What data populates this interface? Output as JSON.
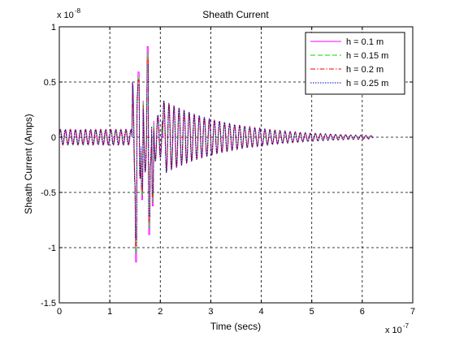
{
  "chart_data": {
    "type": "line",
    "title": "Sheath Current",
    "xlabel": "Time (secs)",
    "ylabel": "Sheath Current (Amps)",
    "x_exponent_label": "x 10",
    "x_exponent": "-7",
    "y_exponent_label": "x 10",
    "y_exponent": "-8",
    "xlim": [
      0,
      7
    ],
    "ylim": [
      -1.5,
      1
    ],
    "x_ticks": [
      0,
      1,
      2,
      3,
      4,
      5,
      6,
      7
    ],
    "x_tick_labels": [
      "0",
      "1",
      "2",
      "3",
      "4",
      "5",
      "6",
      "7"
    ],
    "y_ticks": [
      -1.5,
      -1,
      -0.5,
      0,
      0.5,
      1
    ],
    "y_tick_labels": [
      "-1.5",
      "-1",
      "-0.5",
      "0",
      "0.5",
      "1"
    ],
    "grid": true,
    "legend_position": "top-right",
    "series": [
      {
        "name": "h = 0.1 m",
        "color": "#ff00ff",
        "dash": "solid",
        "peak": 0.82,
        "trough": -1.13,
        "shift": 0.0
      },
      {
        "name": "h = 0.15 m",
        "color": "#00dd00",
        "dash": "dashed",
        "peak": 0.76,
        "trough": -1.05,
        "shift": 0.01
      },
      {
        "name": "h = 0.2 m",
        "color": "#ff0000",
        "dash": "dashdot",
        "peak": 0.72,
        "trough": -0.98,
        "shift": 0.02
      },
      {
        "name": "h = 0.25 m",
        "color": "#0000cc",
        "dash": "dotted",
        "peak": 0.66,
        "trough": -0.92,
        "shift": 0.03
      }
    ]
  }
}
